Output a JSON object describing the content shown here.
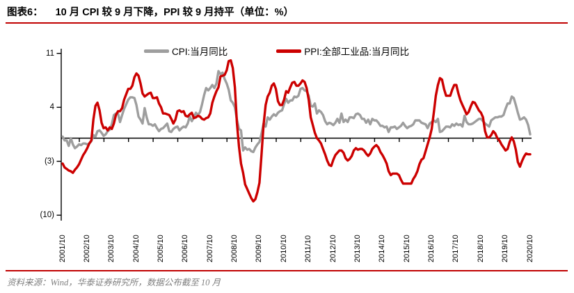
{
  "header": {
    "figure_label": "图表6：",
    "title": "10 月 CPI 较 9 月下降，PPI 较 9 月持平（单位：%）"
  },
  "legend": {
    "cpi": {
      "label": "CPI:当月同比",
      "color": "#9e9e9e"
    },
    "ppi": {
      "label": "PPI:全部工业品:当月同比",
      "color": "#cc0000"
    }
  },
  "footer": {
    "source": "资料来源：Wind，华泰证券研究所，数据公布截至 10 月"
  },
  "colors": {
    "accent_red": "#c00000",
    "axis_black": "#000000",
    "cpi_gray": "#9e9e9e",
    "ppi_red": "#cc0000"
  },
  "chart_data": {
    "type": "line",
    "title": "10 月 CPI 较 9 月下降，PPI 较 9 月持平（单位：%）",
    "unit": "%",
    "frequency": "monthly",
    "x_start": "2001/10",
    "x_end": "2020/10",
    "x_labels": [
      "2001/10",
      "2002/10",
      "2003/10",
      "2004/10",
      "2005/10",
      "2006/10",
      "2007/10",
      "2008/10",
      "2009/10",
      "2010/10",
      "2011/10",
      "2012/10",
      "2013/10",
      "2014/10",
      "2015/10",
      "2016/10",
      "2017/10",
      "2018/10",
      "2019/10",
      "2020/10"
    ],
    "y_ticks": [
      {
        "label": "11",
        "value": 11
      },
      {
        "label": "4",
        "value": 4
      },
      {
        "label": "(3)",
        "value": -3
      },
      {
        "label": "(10)",
        "value": -10
      }
    ],
    "ylim": [
      -10,
      11
    ],
    "grid": false,
    "legend_position": "top",
    "series": [
      {
        "name": "CPI:当月同比",
        "color": "#9e9e9e",
        "values": [
          0.2,
          -0.3,
          -0.3,
          -1.0,
          0.0,
          -0.8,
          -1.3,
          -1.1,
          -0.8,
          -0.9,
          -0.7,
          -0.7,
          -0.8,
          -0.7,
          -0.4,
          0.4,
          0.2,
          0.9,
          1.0,
          0.7,
          0.3,
          0.5,
          0.9,
          1.1,
          1.8,
          3.0,
          3.2,
          3.2,
          2.1,
          3.0,
          3.8,
          4.4,
          5.0,
          5.3,
          5.3,
          5.2,
          4.3,
          2.8,
          2.4,
          1.9,
          3.9,
          2.7,
          1.8,
          1.8,
          1.6,
          1.8,
          1.3,
          0.9,
          1.2,
          1.3,
          1.6,
          1.9,
          0.9,
          0.8,
          1.2,
          1.4,
          1.5,
          1.0,
          1.3,
          1.5,
          1.4,
          1.9,
          2.8,
          2.2,
          2.7,
          3.3,
          3.0,
          3.4,
          4.4,
          5.6,
          6.5,
          6.2,
          6.5,
          6.9,
          6.5,
          7.1,
          8.7,
          8.3,
          8.5,
          7.7,
          7.1,
          6.3,
          4.9,
          4.6,
          4.0,
          2.4,
          1.2,
          1.0,
          -1.6,
          -1.2,
          -1.5,
          -1.4,
          -1.7,
          -1.8,
          -1.2,
          -0.8,
          -0.5,
          0.6,
          1.9,
          1.5,
          2.7,
          2.4,
          2.8,
          3.1,
          2.9,
          3.3,
          3.5,
          3.6,
          4.4,
          5.1,
          4.6,
          4.9,
          4.9,
          5.4,
          5.3,
          5.5,
          6.4,
          6.5,
          6.2,
          6.1,
          5.5,
          4.2,
          4.1,
          4.5,
          3.2,
          3.6,
          3.4,
          3.0,
          2.2,
          1.8,
          2.0,
          1.9,
          1.7,
          2.0,
          2.5,
          2.0,
          3.2,
          2.1,
          2.4,
          2.1,
          2.7,
          2.7,
          2.6,
          3.1,
          3.2,
          3.0,
          2.5,
          2.5,
          2.0,
          2.4,
          1.8,
          2.5,
          2.3,
          2.3,
          2.0,
          1.6,
          1.6,
          1.4,
          1.5,
          0.8,
          1.4,
          1.4,
          1.5,
          1.2,
          1.4,
          1.6,
          2.0,
          1.6,
          1.3,
          1.5,
          1.6,
          1.8,
          2.3,
          2.3,
          2.3,
          2.0,
          1.9,
          1.8,
          1.3,
          1.9,
          2.1,
          2.3,
          2.1,
          2.5,
          0.8,
          0.9,
          1.2,
          1.5,
          1.5,
          1.4,
          1.8,
          1.6,
          1.9,
          1.7,
          1.8,
          1.5,
          2.9,
          2.1,
          1.8,
          1.8,
          1.9,
          2.1,
          2.3,
          2.5,
          2.5,
          2.2,
          1.9,
          1.7,
          1.5,
          2.3,
          2.5,
          2.7,
          2.7,
          2.8,
          2.8,
          3.0,
          3.8,
          4.5,
          4.5,
          5.4,
          5.2,
          4.3,
          3.3,
          2.4,
          2.5,
          2.7,
          2.4,
          1.7,
          0.5
        ]
      },
      {
        "name": "PPI:全部工业品:当月同比",
        "color": "#cc0000",
        "values": [
          -3.3,
          -3.8,
          -4.0,
          -4.2,
          -4.3,
          -4.5,
          -4.1,
          -3.8,
          -3.4,
          -2.8,
          -2.2,
          -1.8,
          -1.3,
          -0.7,
          -0.3,
          2.4,
          4.2,
          4.6,
          3.6,
          2.0,
          1.3,
          1.4,
          1.0,
          1.4,
          1.2,
          1.9,
          3.0,
          3.5,
          3.5,
          3.9,
          5.0,
          5.7,
          6.4,
          6.4,
          6.8,
          7.9,
          8.4,
          8.1,
          7.1,
          5.8,
          5.4,
          5.6,
          5.8,
          5.9,
          5.2,
          5.2,
          5.3,
          4.5,
          4.0,
          3.2,
          3.2,
          3.1,
          3.0,
          2.5,
          1.9,
          2.4,
          3.5,
          3.6,
          3.4,
          3.5,
          2.9,
          2.8,
          3.1,
          3.3,
          2.6,
          2.7,
          2.9,
          2.8,
          2.5,
          2.4,
          2.6,
          2.7,
          3.2,
          4.6,
          5.4,
          6.1,
          6.6,
          8.0,
          8.1,
          8.2,
          8.8,
          10.0,
          10.1,
          9.1,
          6.6,
          2.0,
          -1.1,
          -3.3,
          -4.5,
          -6.0,
          -6.6,
          -7.2,
          -7.8,
          -8.2,
          -7.9,
          -7.0,
          -5.8,
          -2.1,
          1.7,
          4.3,
          5.4,
          5.9,
          6.8,
          7.1,
          6.4,
          4.8,
          4.3,
          4.3,
          5.0,
          6.1,
          5.9,
          6.6,
          7.2,
          7.3,
          6.8,
          6.8,
          7.1,
          7.5,
          7.3,
          6.5,
          5.0,
          2.7,
          1.7,
          0.7,
          0.0,
          -0.3,
          -0.7,
          -1.4,
          -2.1,
          -2.9,
          -3.5,
          -3.6,
          -2.8,
          -2.2,
          -1.9,
          -1.6,
          -1.6,
          -1.9,
          -2.6,
          -2.9,
          -2.7,
          -2.3,
          -1.6,
          -1.3,
          -1.5,
          -1.4,
          -1.4,
          -1.6,
          -2.0,
          -2.3,
          -2.0,
          -1.4,
          -1.1,
          -0.9,
          -1.2,
          -1.8,
          -2.2,
          -2.7,
          -3.3,
          -4.3,
          -4.8,
          -4.6,
          -4.6,
          -4.6,
          -4.8,
          -5.4,
          -5.9,
          -5.9,
          -5.9,
          -5.9,
          -5.9,
          -5.3,
          -4.9,
          -4.3,
          -3.4,
          -2.8,
          -2.6,
          -1.7,
          -0.8,
          0.1,
          1.2,
          3.3,
          5.5,
          6.9,
          7.8,
          7.6,
          6.4,
          5.5,
          5.5,
          5.5,
          6.3,
          6.9,
          6.9,
          5.8,
          4.9,
          4.3,
          3.7,
          3.1,
          3.4,
          4.1,
          4.7,
          4.6,
          4.1,
          3.6,
          3.3,
          2.7,
          0.9,
          0.1,
          0.1,
          0.4,
          0.9,
          0.6,
          0.0,
          -0.3,
          -0.8,
          -1.2,
          -1.6,
          -1.4,
          -0.5,
          0.1,
          -0.4,
          -1.5,
          -3.1,
          -3.7,
          -3.0,
          -2.4,
          -2.0,
          -2.1,
          -2.1
        ]
      }
    ]
  }
}
